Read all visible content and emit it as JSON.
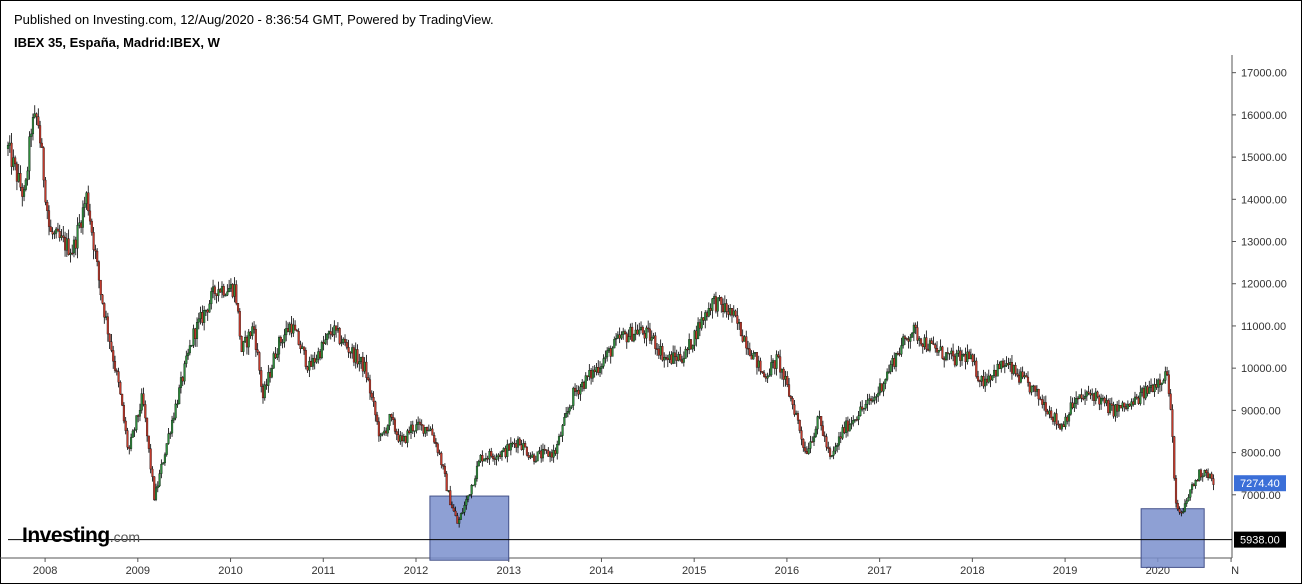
{
  "header": {
    "published": "Published on Investing.com, 12/Aug/2020 - 8:36:54 GMT, Powered by TradingView.",
    "symbol": "IBEX 35, España, Madrid:IBEX, W"
  },
  "logo": {
    "main": "Investing",
    "suffix": ".com"
  },
  "colors": {
    "up": "#2e8b3c",
    "down": "#c0392b",
    "wick": "#000000",
    "box_fill": "#7a8fcc",
    "box_stroke": "#44518a",
    "price_tag": "#3b6fd8"
  },
  "chart_data": {
    "type": "candlestick",
    "y_ticks": [
      "7000.00",
      "8000.00",
      "9000.00",
      "10000.00",
      "11000.00",
      "12000.00",
      "13000.00",
      "14000.00",
      "15000.00",
      "16000.00",
      "17000.00"
    ],
    "ylim": [
      5550,
      17300
    ],
    "x_ticks": [
      "2008",
      "2009",
      "2010",
      "2011",
      "2012",
      "2013",
      "2014",
      "2015",
      "2016",
      "2017",
      "2018",
      "2019",
      "2020",
      "N"
    ],
    "xlim": [
      2007.6,
      2020.8
    ],
    "last_price_label": "7274.40",
    "hline_label": "5938.00",
    "hline_value": 5938,
    "boxes": [
      {
        "x0": 2012.15,
        "x1": 2013.0,
        "y0": 5450,
        "y1": 6970
      },
      {
        "x0": 2019.82,
        "x1": 2020.5,
        "y0": 5280,
        "y1": 6670
      }
    ],
    "anchors": [
      [
        2007.6,
        15200
      ],
      [
        2007.78,
        14000
      ],
      [
        2007.85,
        15700
      ],
      [
        2007.92,
        15950
      ],
      [
        2008.05,
        13200
      ],
      [
        2008.3,
        12800
      ],
      [
        2008.45,
        14100
      ],
      [
        2008.6,
        11800
      ],
      [
        2008.8,
        9500
      ],
      [
        2008.9,
        8000
      ],
      [
        2009.05,
        9300
      ],
      [
        2009.18,
        6900
      ],
      [
        2009.35,
        8600
      ],
      [
        2009.6,
        10800
      ],
      [
        2009.85,
        11900
      ],
      [
        2010.05,
        11900
      ],
      [
        2010.12,
        10400
      ],
      [
        2010.25,
        11000
      ],
      [
        2010.35,
        9300
      ],
      [
        2010.5,
        10500
      ],
      [
        2010.65,
        11050
      ],
      [
        2010.85,
        10000
      ],
      [
        2011.1,
        10900
      ],
      [
        2011.3,
        10400
      ],
      [
        2011.45,
        10000
      ],
      [
        2011.62,
        8300
      ],
      [
        2011.72,
        8800
      ],
      [
        2011.85,
        8200
      ],
      [
        2011.95,
        8600
      ],
      [
        2012.15,
        8600
      ],
      [
        2012.25,
        8000
      ],
      [
        2012.35,
        7000
      ],
      [
        2012.45,
        6300
      ],
      [
        2012.55,
        6900
      ],
      [
        2012.7,
        7900
      ],
      [
        2012.95,
        8000
      ],
      [
        2013.1,
        8300
      ],
      [
        2013.25,
        7900
      ],
      [
        2013.5,
        8000
      ],
      [
        2013.7,
        9400
      ],
      [
        2013.95,
        10000
      ],
      [
        2014.2,
        10700
      ],
      [
        2014.4,
        10900
      ],
      [
        2014.55,
        10700
      ],
      [
        2014.7,
        10200
      ],
      [
        2014.9,
        10300
      ],
      [
        2015.05,
        11000
      ],
      [
        2015.2,
        11600
      ],
      [
        2015.4,
        11300
      ],
      [
        2015.55,
        10700
      ],
      [
        2015.75,
        9800
      ],
      [
        2015.9,
        10200
      ],
      [
        2016.1,
        8900
      ],
      [
        2016.2,
        8000
      ],
      [
        2016.35,
        8800
      ],
      [
        2016.47,
        7800
      ],
      [
        2016.6,
        8500
      ],
      [
        2016.75,
        8900
      ],
      [
        2016.95,
        9300
      ],
      [
        2017.2,
        10400
      ],
      [
        2017.35,
        10900
      ],
      [
        2017.55,
        10500
      ],
      [
        2017.8,
        10200
      ],
      [
        2017.95,
        10300
      ],
      [
        2018.1,
        9700
      ],
      [
        2018.35,
        10100
      ],
      [
        2018.6,
        9600
      ],
      [
        2018.8,
        9100
      ],
      [
        2018.95,
        8600
      ],
      [
        2019.1,
        9200
      ],
      [
        2019.3,
        9400
      ],
      [
        2019.5,
        9000
      ],
      [
        2019.7,
        9100
      ],
      [
        2019.9,
        9500
      ],
      [
        2020.0,
        9700
      ],
      [
        2020.1,
        9900
      ],
      [
        2020.15,
        8600
      ],
      [
        2020.2,
        6600
      ],
      [
        2020.26,
        6500
      ],
      [
        2020.35,
        7100
      ],
      [
        2020.45,
        7500
      ],
      [
        2020.52,
        7600
      ],
      [
        2020.6,
        7274
      ]
    ]
  }
}
